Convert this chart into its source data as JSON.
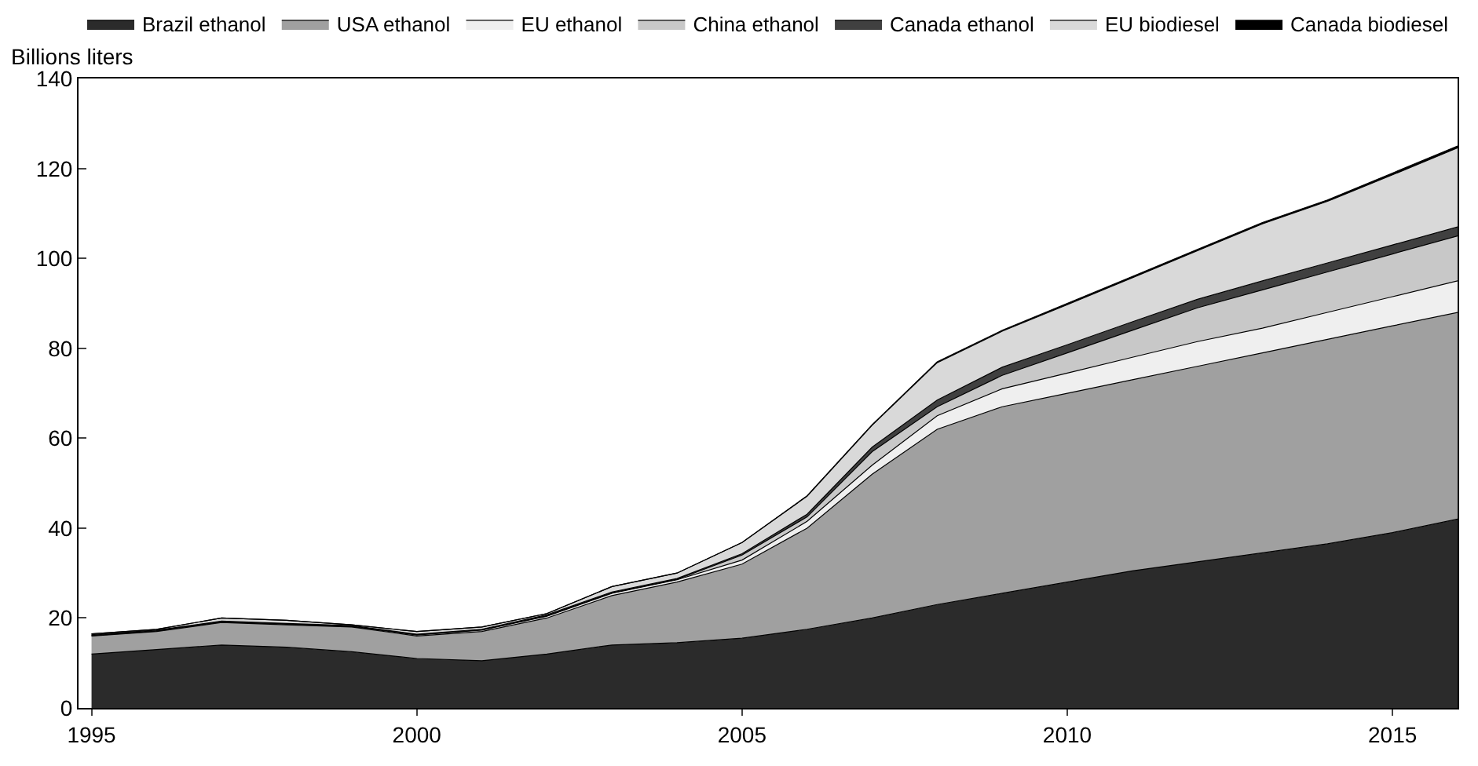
{
  "chart_data": {
    "type": "area",
    "stacked": true,
    "ylabel": "Billions liters",
    "legend": "top",
    "x": [
      1995,
      1996,
      1997,
      1998,
      1999,
      2000,
      2001,
      2002,
      2003,
      2004,
      2005,
      2006,
      2007,
      2008,
      2009,
      2010,
      2011,
      2012,
      2013,
      2014,
      2015,
      2016
    ],
    "xlim": [
      1994.8,
      2016
    ],
    "xticks": [
      1995,
      2000,
      2005,
      2010,
      2015
    ],
    "ylim": [
      0,
      140
    ],
    "yticks": [
      0,
      20,
      40,
      60,
      80,
      100,
      120,
      140
    ],
    "series": [
      {
        "name": "Brazil ethanol",
        "color": "#2b2b2b",
        "values": [
          12,
          13,
          14,
          13.5,
          12.5,
          11,
          10.5,
          12,
          14,
          14.5,
          15.5,
          17.5,
          20,
          23,
          25.5,
          28,
          30.5,
          32.5,
          34.5,
          36.5,
          39,
          42
        ]
      },
      {
        "name": "USA ethanol",
        "color": "#a0a0a0",
        "values": [
          4,
          4,
          5,
          5,
          5.5,
          5,
          6.5,
          8,
          11,
          13.5,
          16.5,
          22.5,
          32,
          39,
          41.5,
          42,
          42.5,
          43.5,
          44.5,
          45.5,
          46,
          46
        ]
      },
      {
        "name": "EU ethanol",
        "color": "#efefef",
        "values": [
          0.1,
          0.1,
          0.1,
          0.1,
          0.1,
          0.2,
          0.3,
          0.4,
          0.5,
          0.5,
          0.9,
          1.5,
          2,
          3,
          4,
          4.5,
          5,
          5.5,
          5.5,
          6,
          6.5,
          7
        ]
      },
      {
        "name": "China ethanol",
        "color": "#c8c8c8",
        "values": [
          0.1,
          0.1,
          0.1,
          0.1,
          0.1,
          0.1,
          0.1,
          0.1,
          0.1,
          0.1,
          1.1,
          1,
          3,
          2,
          3,
          4.5,
          6,
          7.5,
          8.5,
          9,
          9.5,
          10
        ]
      },
      {
        "name": "Canada ethanol",
        "color": "#404040",
        "values": [
          0.1,
          0.1,
          0.1,
          0.1,
          0.1,
          0.1,
          0.1,
          0.2,
          0.2,
          0.2,
          0.3,
          0.6,
          1,
          1.5,
          1.8,
          1.8,
          1.9,
          1.9,
          2,
          2,
          2,
          2
        ]
      },
      {
        "name": "EU biodiesel",
        "color": "#d9d9d9",
        "values": [
          0.2,
          0.2,
          0.7,
          0.7,
          0.2,
          0.6,
          0.5,
          0.3,
          1.2,
          1.2,
          2.5,
          4,
          4.9,
          8.3,
          8,
          8.9,
          9.8,
          10.8,
          12.7,
          13.7,
          15.6,
          17.6
        ]
      },
      {
        "name": "Canada biodiesel",
        "color": "#000000",
        "values": [
          0,
          0,
          0,
          0,
          0,
          0,
          0,
          0,
          0,
          0,
          0,
          0.1,
          0.1,
          0.2,
          0.2,
          0.3,
          0.3,
          0.3,
          0.3,
          0.3,
          0.4,
          0.4
        ]
      }
    ]
  }
}
